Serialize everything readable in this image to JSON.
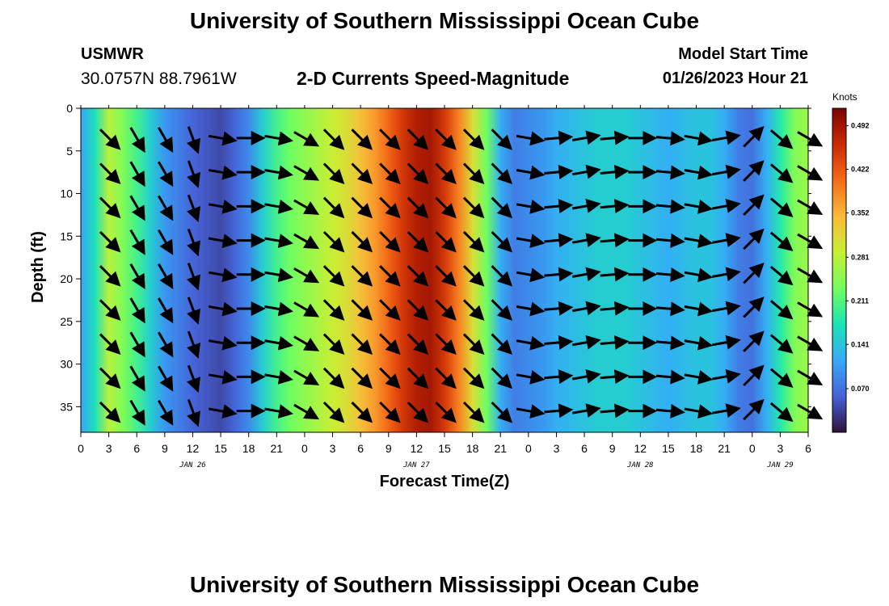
{
  "header": {
    "title": "University of Southern Mississippi Ocean Cube",
    "station": "USMWR",
    "coords": "30.0757N  88.7961W",
    "subtitle": "2-D Currents Speed-Magnitude",
    "model_label": "Model Start Time",
    "model_time": "01/26/2023 Hour 21"
  },
  "footer": {
    "title": "University of Southern Mississippi Ocean Cube"
  },
  "chart_data": {
    "type": "heatmap",
    "title": "2-D Currents Speed-Magnitude",
    "xlabel": "Forecast Time(Z)",
    "ylabel": "Depth (ft)",
    "x_unit": "hours since 01/26/2023 00Z",
    "xlim": [
      0,
      78
    ],
    "ylim": [
      38,
      0
    ],
    "x_ticks": [
      0,
      3,
      6,
      9,
      12,
      15,
      18,
      21,
      24,
      27,
      30,
      33,
      36,
      39,
      42,
      45,
      48,
      51,
      54,
      57,
      60,
      63,
      66,
      69,
      72,
      75,
      78
    ],
    "x_tick_labels": [
      "0",
      "3",
      "6",
      "9",
      "12",
      "15",
      "18",
      "21",
      "0",
      "3",
      "6",
      "9",
      "12",
      "15",
      "18",
      "21",
      "0",
      "3",
      "6",
      "9",
      "12",
      "15",
      "18",
      "21",
      "0",
      "3",
      "6"
    ],
    "y_ticks": [
      0,
      5,
      10,
      15,
      20,
      25,
      30,
      35
    ],
    "date_labels": [
      {
        "x": 12,
        "label": "JAN 26"
      },
      {
        "x": 36,
        "label": "JAN 27"
      },
      {
        "x": 60,
        "label": "JAN 28"
      },
      {
        "x": 75,
        "label": "JAN 29"
      }
    ],
    "colorbar": {
      "unit": "Knots",
      "ticks": [
        0.07,
        0.141,
        0.211,
        0.281,
        0.352,
        0.422,
        0.492
      ],
      "tick_labels": [
        "0.070",
        "0.141",
        "0.211",
        "0.281",
        "0.352",
        "0.422",
        "0.492"
      ],
      "range": [
        0.0,
        0.52
      ],
      "colors": [
        "#30123b",
        "#4662d7",
        "#36aaf9",
        "#1ae4b6",
        "#72fe5e",
        "#c7ef34",
        "#faba39",
        "#f66b19",
        "#ca2a04",
        "#7a0403"
      ]
    },
    "speed_profile": {
      "x": [
        0,
        1.5,
        3,
        4.5,
        6,
        7.5,
        9,
        10.5,
        12,
        13.5,
        15,
        16.5,
        18,
        19.5,
        21,
        22.5,
        24,
        25.5,
        27,
        28.5,
        30,
        31.5,
        33,
        34.5,
        36,
        37.5,
        39,
        40.5,
        42,
        43.5,
        45,
        46.5,
        48,
        49.5,
        51,
        52.5,
        54,
        55.5,
        57,
        58.5,
        60,
        61.5,
        63,
        64.5,
        66,
        67.5,
        69,
        70.5,
        72,
        73.5,
        75,
        76.5,
        78
      ],
      "speed_knots": [
        0.11,
        0.17,
        0.28,
        0.24,
        0.2,
        0.15,
        0.1,
        0.08,
        0.06,
        0.05,
        0.04,
        0.06,
        0.09,
        0.15,
        0.2,
        0.23,
        0.25,
        0.27,
        0.29,
        0.31,
        0.34,
        0.37,
        0.41,
        0.45,
        0.48,
        0.49,
        0.45,
        0.39,
        0.31,
        0.23,
        0.12,
        0.08,
        0.09,
        0.1,
        0.12,
        0.13,
        0.14,
        0.15,
        0.15,
        0.15,
        0.14,
        0.13,
        0.12,
        0.13,
        0.14,
        0.14,
        0.12,
        0.08,
        0.07,
        0.12,
        0.18,
        0.24,
        0.26
      ]
    },
    "vector_rows_depth_ft": [
      3.5,
      7.5,
      11.5,
      15.5,
      19.5,
      23.5,
      27.5,
      31.5,
      35.5
    ],
    "vector_columns_x": [
      3,
      6,
      9,
      12,
      15,
      18,
      21,
      24,
      27,
      30,
      33,
      36,
      39,
      42,
      45,
      48,
      51,
      54,
      57,
      60,
      63,
      66,
      69,
      72,
      75,
      78
    ],
    "vector_direction_deg": [
      135,
      150,
      150,
      160,
      100,
      90,
      100,
      120,
      135,
      135,
      135,
      135,
      135,
      135,
      135,
      100,
      85,
      80,
      85,
      90,
      95,
      100,
      80,
      45,
      130,
      120
    ]
  }
}
